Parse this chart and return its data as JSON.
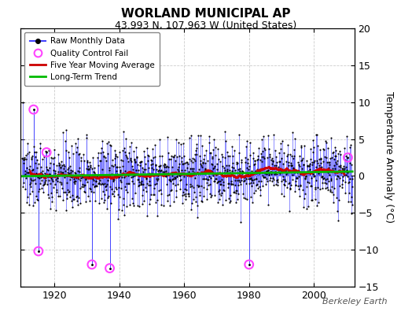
{
  "title": "WORLAND MUNICIPAL AP",
  "subtitle": "43.993 N, 107.963 W (United States)",
  "ylabel": "Temperature Anomaly (°C)",
  "credit": "Berkeley Earth",
  "year_start": 1910,
  "year_end": 2012,
  "ylim": [
    -15,
    20
  ],
  "yticks": [
    -15,
    -10,
    -5,
    0,
    5,
    10,
    15,
    20
  ],
  "xticks": [
    1920,
    1940,
    1960,
    1980,
    2000
  ],
  "background_color": "#ffffff",
  "plot_bg_color": "#ffffff",
  "line_color": "#4444ff",
  "dot_color": "#000000",
  "qc_fail_color": "#ff44ff",
  "moving_avg_color": "#cc0000",
  "trend_color": "#00bb00",
  "seed": 137
}
